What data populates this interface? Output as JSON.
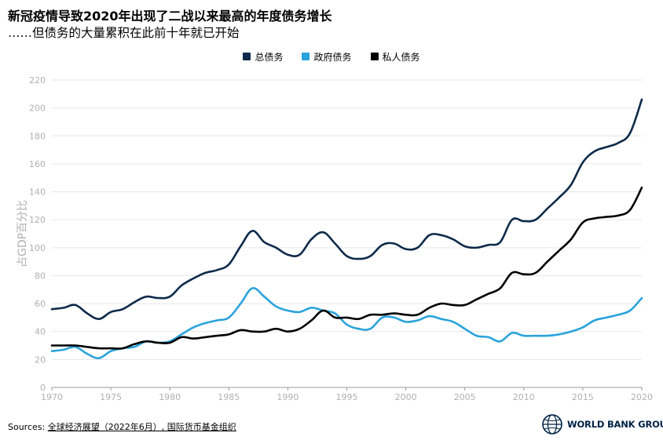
{
  "header": {
    "title": "新冠疫情导致2020年出现了二战以来最高的年度债务增长",
    "subtitle": "……但债务的大量累积在此前十年就已开始"
  },
  "footer": {
    "sources_label": "Sources:",
    "sources_links": "全球经济展望（2022年6月）, 国际货币基金组织"
  },
  "logo": {
    "text": "WORLD BANK GROUP",
    "icon": "world-bank-globe-icon"
  },
  "colors": {
    "total": "#0d2a4a",
    "government": "#2aa3dc",
    "private": "#000000",
    "grid": "#e6e6e6",
    "axis_text": "#b0b0b0"
  },
  "chart_data": {
    "type": "line",
    "ylabel": "占GDP百分比",
    "xlim": [
      1970,
      2020
    ],
    "ylim": [
      0,
      220
    ],
    "xticks": [
      1970,
      1975,
      1980,
      1985,
      1990,
      1995,
      2000,
      2005,
      2010,
      2015,
      2020
    ],
    "yticks": [
      0,
      20,
      40,
      60,
      80,
      100,
      120,
      140,
      160,
      180,
      200,
      220
    ],
    "grid": "horizontal",
    "legend_position": "top-center",
    "series": [
      {
        "name": "总债务",
        "color_key": "total",
        "points": [
          [
            1970,
            56
          ],
          [
            1971,
            57
          ],
          [
            1972,
            59
          ],
          [
            1973,
            53
          ],
          [
            1974,
            49
          ],
          [
            1975,
            54
          ],
          [
            1976,
            56
          ],
          [
            1977,
            61
          ],
          [
            1978,
            65
          ],
          [
            1979,
            64
          ],
          [
            1980,
            65
          ],
          [
            1981,
            73
          ],
          [
            1982,
            78
          ],
          [
            1983,
            82
          ],
          [
            1984,
            84
          ],
          [
            1985,
            88
          ],
          [
            1986,
            101
          ],
          [
            1987,
            112
          ],
          [
            1988,
            104
          ],
          [
            1989,
            100
          ],
          [
            1990,
            95
          ],
          [
            1991,
            95
          ],
          [
            1992,
            106
          ],
          [
            1993,
            111
          ],
          [
            1994,
            103
          ],
          [
            1995,
            94
          ],
          [
            1996,
            92
          ],
          [
            1997,
            94
          ],
          [
            1998,
            102
          ],
          [
            1999,
            103
          ],
          [
            2000,
            99
          ],
          [
            2001,
            100
          ],
          [
            2002,
            109
          ],
          [
            2003,
            109
          ],
          [
            2004,
            106
          ],
          [
            2005,
            101
          ],
          [
            2006,
            100
          ],
          [
            2007,
            102
          ],
          [
            2008,
            104
          ],
          [
            2009,
            120
          ],
          [
            2010,
            119
          ],
          [
            2011,
            120
          ],
          [
            2012,
            128
          ],
          [
            2013,
            136
          ],
          [
            2014,
            145
          ],
          [
            2015,
            161
          ],
          [
            2016,
            169
          ],
          [
            2017,
            172
          ],
          [
            2018,
            175
          ],
          [
            2019,
            182
          ],
          [
            2020,
            206
          ]
        ]
      },
      {
        "name": "政府债务",
        "color_key": "government",
        "points": [
          [
            1970,
            26
          ],
          [
            1971,
            27
          ],
          [
            1972,
            29
          ],
          [
            1973,
            24
          ],
          [
            1974,
            21
          ],
          [
            1975,
            26
          ],
          [
            1976,
            28
          ],
          [
            1977,
            29
          ],
          [
            1978,
            33
          ],
          [
            1979,
            32
          ],
          [
            1980,
            33
          ],
          [
            1981,
            38
          ],
          [
            1982,
            43
          ],
          [
            1983,
            46
          ],
          [
            1984,
            48
          ],
          [
            1985,
            50
          ],
          [
            1986,
            60
          ],
          [
            1987,
            71
          ],
          [
            1988,
            65
          ],
          [
            1989,
            58
          ],
          [
            1990,
            55
          ],
          [
            1991,
            54
          ],
          [
            1992,
            57
          ],
          [
            1993,
            55
          ],
          [
            1994,
            53
          ],
          [
            1995,
            45
          ],
          [
            1996,
            42
          ],
          [
            1997,
            42
          ],
          [
            1998,
            50
          ],
          [
            1999,
            50
          ],
          [
            2000,
            47
          ],
          [
            2001,
            48
          ],
          [
            2002,
            51
          ],
          [
            2003,
            49
          ],
          [
            2004,
            47
          ],
          [
            2005,
            42
          ],
          [
            2006,
            37
          ],
          [
            2007,
            36
          ],
          [
            2008,
            33
          ],
          [
            2009,
            39
          ],
          [
            2010,
            37
          ],
          [
            2011,
            37
          ],
          [
            2012,
            37
          ],
          [
            2013,
            38
          ],
          [
            2014,
            40
          ],
          [
            2015,
            43
          ],
          [
            2016,
            48
          ],
          [
            2017,
            50
          ],
          [
            2018,
            52
          ],
          [
            2019,
            55
          ],
          [
            2020,
            64
          ]
        ]
      },
      {
        "name": "私人债务",
        "color_key": "private",
        "points": [
          [
            1970,
            30
          ],
          [
            1971,
            30
          ],
          [
            1972,
            30
          ],
          [
            1973,
            29
          ],
          [
            1974,
            28
          ],
          [
            1975,
            28
          ],
          [
            1976,
            28
          ],
          [
            1977,
            31
          ],
          [
            1978,
            33
          ],
          [
            1979,
            32
          ],
          [
            1980,
            32
          ],
          [
            1981,
            36
          ],
          [
            1982,
            35
          ],
          [
            1983,
            36
          ],
          [
            1984,
            37
          ],
          [
            1985,
            38
          ],
          [
            1986,
            41
          ],
          [
            1987,
            40
          ],
          [
            1988,
            40
          ],
          [
            1989,
            42
          ],
          [
            1990,
            40
          ],
          [
            1991,
            42
          ],
          [
            1992,
            48
          ],
          [
            1993,
            55
          ],
          [
            1994,
            50
          ],
          [
            1995,
            50
          ],
          [
            1996,
            49
          ],
          [
            1997,
            52
          ],
          [
            1998,
            52
          ],
          [
            1999,
            53
          ],
          [
            2000,
            52
          ],
          [
            2001,
            52
          ],
          [
            2002,
            57
          ],
          [
            2003,
            60
          ],
          [
            2004,
            59
          ],
          [
            2005,
            59
          ],
          [
            2006,
            63
          ],
          [
            2007,
            67
          ],
          [
            2008,
            71
          ],
          [
            2009,
            82
          ],
          [
            2010,
            81
          ],
          [
            2011,
            82
          ],
          [
            2012,
            90
          ],
          [
            2013,
            98
          ],
          [
            2014,
            106
          ],
          [
            2015,
            118
          ],
          [
            2016,
            121
          ],
          [
            2017,
            122
          ],
          [
            2018,
            123
          ],
          [
            2019,
            127
          ],
          [
            2020,
            143
          ]
        ]
      }
    ]
  }
}
